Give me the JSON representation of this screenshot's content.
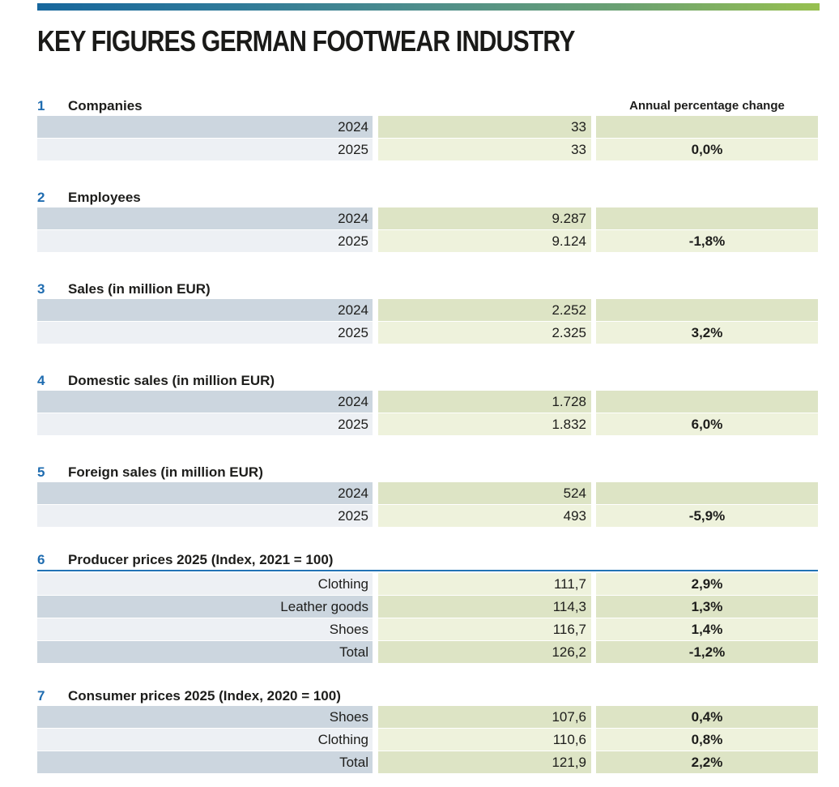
{
  "page": {
    "title": "KEY FIGURES GERMAN FOOTWEAR INDUSTRY"
  },
  "colors": {
    "accent_blue": "#1f6cb0",
    "rule_blue": "#2273b5",
    "row_label_dark": "#ccd6df",
    "row_label_light": "#edf0f4",
    "row_green_dark": "#dde4c5",
    "row_green_light": "#eef2dc",
    "topbar_gradient_start": "#17679d",
    "topbar_gradient_end": "#97c04f"
  },
  "table": {
    "change_header": "Annual percentage change",
    "sections": [
      {
        "num": "1",
        "heading": "Companies",
        "rows": [
          {
            "label": "2024",
            "value": "33",
            "change": ""
          },
          {
            "label": "2025",
            "value": "33",
            "change": "0,0%"
          }
        ]
      },
      {
        "num": "2",
        "heading": "Employees",
        "rows": [
          {
            "label": "2024",
            "value": "9.287",
            "change": ""
          },
          {
            "label": "2025",
            "value": "9.124",
            "change": "-1,8%"
          }
        ]
      },
      {
        "num": "3",
        "heading": "Sales (in million EUR)",
        "rows": [
          {
            "label": "2024",
            "value": "2.252",
            "change": ""
          },
          {
            "label": "2025",
            "value": "2.325",
            "change": "3,2%"
          }
        ]
      },
      {
        "num": "4",
        "heading": "Domestic sales (in million EUR)",
        "rows": [
          {
            "label": "2024",
            "value": "1.728",
            "change": ""
          },
          {
            "label": "2025",
            "value": "1.832",
            "change": "6,0%"
          }
        ]
      },
      {
        "num": "5",
        "heading": "Foreign sales (in million EUR)",
        "rows": [
          {
            "label": "2024",
            "value": "524",
            "change": ""
          },
          {
            "label": "2025",
            "value": "493",
            "change": "-5,9%"
          }
        ]
      },
      {
        "num": "6",
        "heading": "Producer prices 2025 (Index, 2021 = 100)",
        "rows": [
          {
            "label": "Clothing",
            "value": "111,7",
            "change": "2,9%"
          },
          {
            "label": "Leather goods",
            "value": "114,3",
            "change": "1,3%"
          },
          {
            "label": "Shoes",
            "value": "116,7",
            "change": "1,4%"
          },
          {
            "label": "Total",
            "value": "126,2",
            "change": "-1,2%"
          }
        ]
      },
      {
        "num": "7",
        "heading": "Consumer prices 2025 (Index, 2020 = 100)",
        "rows": [
          {
            "label": "Shoes",
            "value": "107,6",
            "change": "0,4%"
          },
          {
            "label": "Clothing",
            "value": "110,6",
            "change": "0,8%"
          },
          {
            "label": "Total",
            "value": "121,9",
            "change": "2,2%"
          }
        ]
      }
    ]
  }
}
